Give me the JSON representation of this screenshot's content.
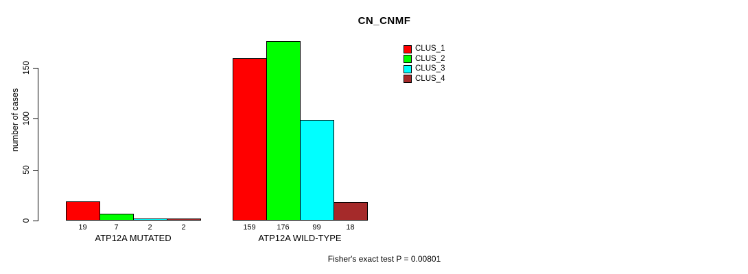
{
  "chart_data": {
    "type": "bar",
    "title": "CN_CNMF",
    "ylabel": "number of cases",
    "footnote": "Fisher's exact test P = 0.00801",
    "categories": [
      "ATP12A MUTATED",
      "ATP12A WILD-TYPE"
    ],
    "series": [
      {
        "name": "CLUS_1",
        "color": "#FF0000",
        "values": [
          19,
          159
        ]
      },
      {
        "name": "CLUS_2",
        "color": "#00FF00",
        "values": [
          7,
          176
        ]
      },
      {
        "name": "CLUS_3",
        "color": "#00FFFF",
        "values": [
          2,
          99
        ]
      },
      {
        "name": "CLUS_4",
        "color": "#A52A2A",
        "values": [
          2,
          18
        ]
      }
    ],
    "bar_value_labels": [
      [
        "19",
        "7",
        "2",
        "2"
      ],
      [
        "159",
        "176",
        "99",
        "18"
      ]
    ],
    "yticks": [
      0,
      50,
      100,
      150
    ],
    "ylim": [
      0,
      183
    ],
    "grid": false,
    "legend_position": "inside-top-right",
    "background_color": "#FFFFFF",
    "axis_color": "#000000"
  }
}
